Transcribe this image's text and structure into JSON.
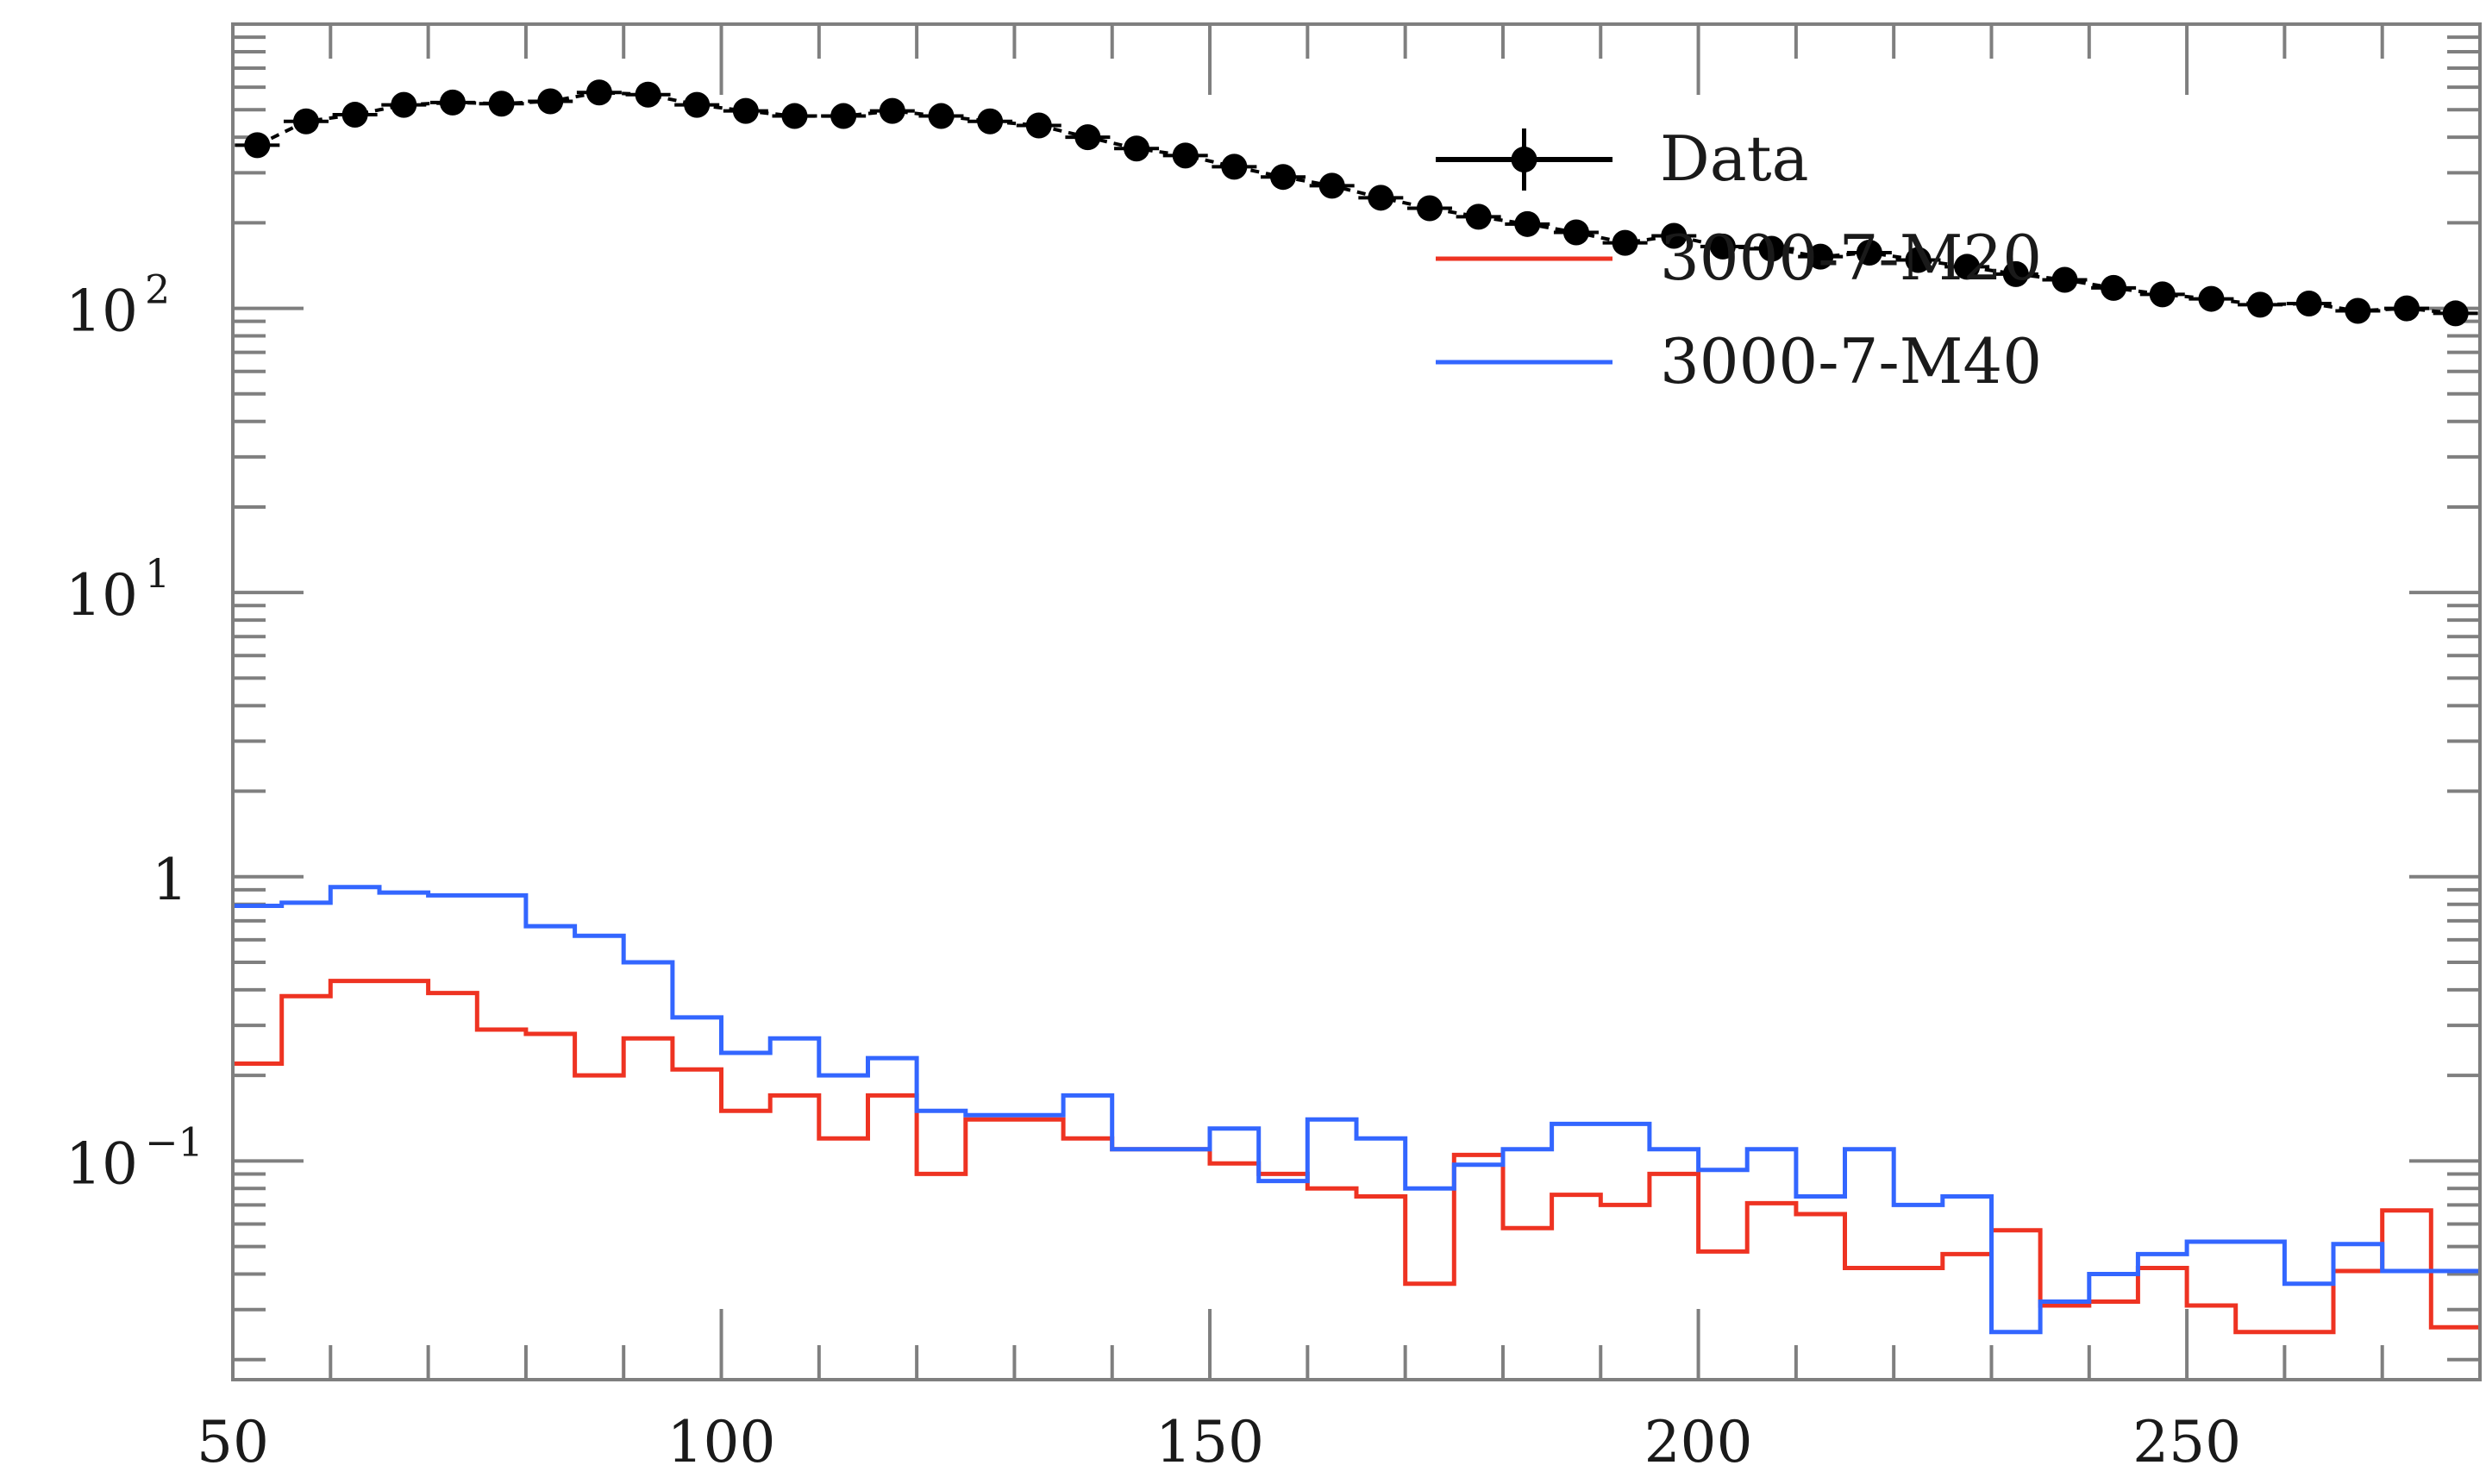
{
  "chart_data": {
    "type": "line",
    "title": "",
    "xlabel": "",
    "ylabel": "",
    "xlim": [
      50,
      280
    ],
    "ylim": [
      0.017,
      1000
    ],
    "yscale": "log",
    "grid": false,
    "legend_position": "top-right",
    "x_ticks": [
      50,
      100,
      150,
      200,
      250
    ],
    "x_tick_labels": [
      "50",
      "100",
      "150",
      "200",
      "250"
    ],
    "y_ticks": [
      {
        "value": 0.1,
        "base": "10",
        "exp": "−1"
      },
      {
        "value": 1,
        "base": "1",
        "exp": ""
      },
      {
        "value": 10,
        "base": "10",
        "exp": "1"
      },
      {
        "value": 100,
        "base": "10",
        "exp": "2"
      }
    ],
    "bin_edges": [
      50,
      55,
      60,
      65,
      70,
      75,
      80,
      85,
      90,
      95,
      100,
      105,
      110,
      115,
      120,
      125,
      130,
      135,
      140,
      145,
      150,
      155,
      160,
      165,
      170,
      175,
      180,
      185,
      190,
      195,
      200,
      205,
      210,
      215,
      220,
      225,
      230,
      235,
      240,
      245,
      250,
      255,
      260,
      265,
      270,
      275,
      280
    ],
    "series": [
      {
        "name": "Data",
        "kind": "points",
        "color": "#000000",
        "x": [
          52.5,
          57.5,
          62.5,
          67.5,
          72.5,
          77.5,
          82.5,
          87.5,
          92.5,
          97.5,
          102.5,
          107.5,
          112.5,
          117.5,
          122.5,
          127.5,
          132.5,
          137.5,
          142.5,
          147.5,
          152.5,
          157.5,
          162.5,
          167.5,
          172.5,
          177.5,
          182.5,
          187.5,
          192.5,
          197.5,
          202.5,
          207.5,
          212.5,
          217.5,
          222.5,
          227.5,
          232.5,
          237.5,
          242.5,
          247.5,
          252.5,
          257.5,
          262.5,
          267.5,
          272.5,
          277.5
        ],
        "values": [
          375,
          455,
          480,
          520,
          530,
          525,
          535,
          575,
          565,
          520,
          495,
          475,
          475,
          495,
          475,
          455,
          440,
          400,
          365,
          345,
          315,
          290,
          270,
          245,
          225,
          210,
          198,
          185,
          170,
          180,
          165,
          162,
          152,
          157,
          148,
          140,
          132,
          126,
          118,
          112,
          108,
          103,
          104,
          98,
          100,
          96
        ]
      },
      {
        "name": "3000-7-M20",
        "kind": "step",
        "color": "#ee3322",
        "values": [
          0.22,
          0.38,
          0.43,
          0.43,
          0.39,
          0.29,
          0.28,
          0.2,
          0.27,
          0.21,
          0.15,
          0.17,
          0.12,
          0.17,
          0.09,
          0.14,
          0.14,
          0.12,
          0.11,
          0.11,
          0.098,
          0.09,
          0.08,
          0.075,
          0.037,
          0.105,
          0.058,
          0.076,
          0.07,
          0.09,
          0.048,
          0.071,
          0.065,
          0.042,
          0.042,
          0.047,
          0.057,
          0.031,
          0.032,
          0.042,
          0.031,
          0.025,
          0.025,
          0.041,
          0.067,
          0.026
        ]
      },
      {
        "name": "3000-7-M40",
        "kind": "step",
        "color": "#3366ff",
        "values": [
          0.79,
          0.81,
          0.92,
          0.88,
          0.86,
          0.86,
          0.67,
          0.62,
          0.5,
          0.32,
          0.24,
          0.27,
          0.2,
          0.23,
          0.15,
          0.145,
          0.145,
          0.17,
          0.11,
          0.11,
          0.13,
          0.085,
          0.14,
          0.12,
          0.08,
          0.097,
          0.11,
          0.135,
          0.135,
          0.11,
          0.093,
          0.11,
          0.075,
          0.11,
          0.07,
          0.075,
          0.025,
          0.032,
          0.04,
          0.047,
          0.052,
          0.052,
          0.037,
          0.051,
          0.041,
          0.041
        ]
      }
    ]
  }
}
